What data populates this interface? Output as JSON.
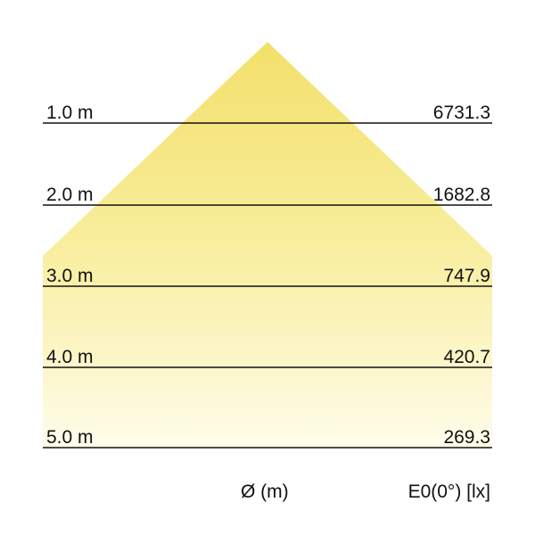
{
  "colors": {
    "beam_top": "#f3e06a",
    "beam_bottom": "#fffcea",
    "line": "#111111"
  },
  "rows": [
    {
      "distance": "1.0 m",
      "illuminance": "6731.3"
    },
    {
      "distance": "2.0 m",
      "illuminance": "1682.8"
    },
    {
      "distance": "3.0 m",
      "illuminance": "747.9"
    },
    {
      "distance": "4.0 m",
      "illuminance": "420.7"
    },
    {
      "distance": "5.0 m",
      "illuminance": "269.3"
    }
  ],
  "footer": {
    "diameter_label": "Ø (m)",
    "illuminance_label": "E0(0°) [lx]"
  }
}
